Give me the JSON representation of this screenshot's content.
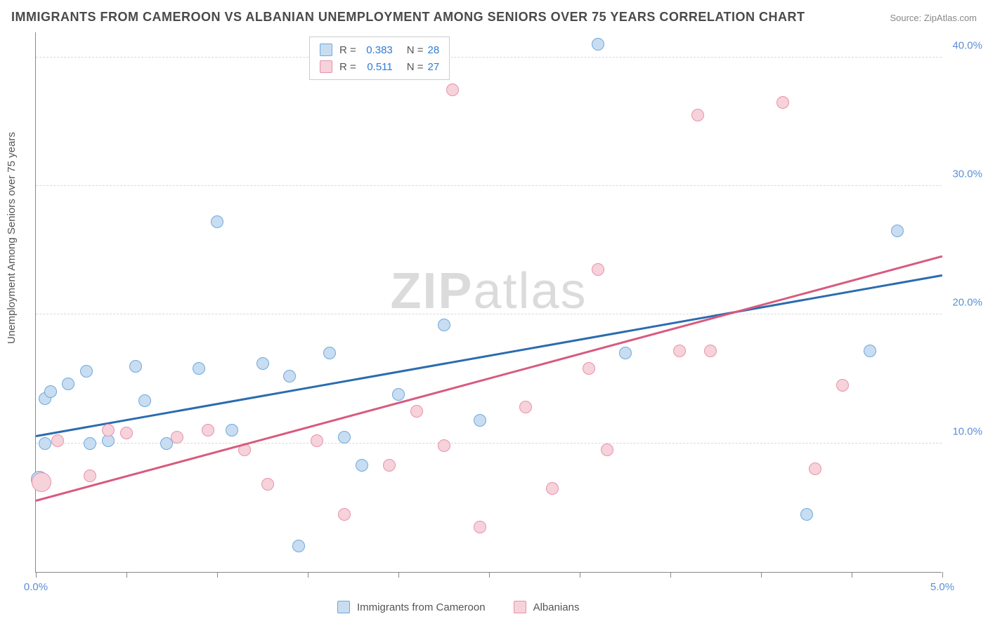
{
  "title": "IMMIGRANTS FROM CAMEROON VS ALBANIAN UNEMPLOYMENT AMONG SENIORS OVER 75 YEARS CORRELATION CHART",
  "source": "Source: ZipAtlas.com",
  "ylabel": "Unemployment Among Seniors over 75 years",
  "watermark_a": "ZIP",
  "watermark_b": "atlas",
  "chart": {
    "type": "scatter",
    "xlim": [
      0.0,
      5.0
    ],
    "ylim": [
      0.0,
      42.0
    ],
    "xticks": [
      0.0,
      0.5,
      1.0,
      1.5,
      2.0,
      2.5,
      3.0,
      3.5,
      4.0,
      4.5,
      5.0
    ],
    "xtick_labels": {
      "0": "0.0%",
      "10": "5.0%"
    },
    "ygrid": [
      10.0,
      20.0,
      30.0,
      40.0
    ],
    "ytick_labels": [
      "10.0%",
      "20.0%",
      "30.0%",
      "40.0%"
    ],
    "background_color": "#ffffff",
    "grid_color": "#d8d8d8",
    "axis_color": "#888888",
    "tick_label_color": "#5a8fd6",
    "title_fontsize": 18,
    "label_fontsize": 15,
    "tick_fontsize": 15,
    "point_radius": 9,
    "point_stroke_width": 1.5,
    "trend_line_width": 2.5
  },
  "series": [
    {
      "name": "Immigrants from Cameroon",
      "fill": "#c8ddf1",
      "stroke": "#6fa8dc",
      "line_color": "#2b6cb0",
      "R": "0.383",
      "N": "28",
      "trend": {
        "x1": 0.0,
        "y1": 10.5,
        "x2": 5.0,
        "y2": 23.0
      },
      "points": [
        {
          "x": 0.05,
          "y": 13.5,
          "r": 9
        },
        {
          "x": 0.08,
          "y": 14.0,
          "r": 9
        },
        {
          "x": 0.02,
          "y": 7.2,
          "r": 12
        },
        {
          "x": 0.05,
          "y": 10.0,
          "r": 9
        },
        {
          "x": 0.18,
          "y": 14.6,
          "r": 9
        },
        {
          "x": 0.28,
          "y": 15.6,
          "r": 9
        },
        {
          "x": 0.3,
          "y": 10.0,
          "r": 9
        },
        {
          "x": 0.4,
          "y": 10.2,
          "r": 9
        },
        {
          "x": 0.55,
          "y": 16.0,
          "r": 9
        },
        {
          "x": 0.6,
          "y": 13.3,
          "r": 9
        },
        {
          "x": 0.72,
          "y": 10.0,
          "r": 9
        },
        {
          "x": 0.9,
          "y": 15.8,
          "r": 9
        },
        {
          "x": 1.0,
          "y": 27.2,
          "r": 9
        },
        {
          "x": 1.08,
          "y": 11.0,
          "r": 9
        },
        {
          "x": 1.25,
          "y": 16.2,
          "r": 9
        },
        {
          "x": 1.4,
          "y": 15.2,
          "r": 9
        },
        {
          "x": 1.45,
          "y": 2.0,
          "r": 9
        },
        {
          "x": 1.62,
          "y": 17.0,
          "r": 9
        },
        {
          "x": 1.7,
          "y": 10.5,
          "r": 9
        },
        {
          "x": 1.8,
          "y": 8.3,
          "r": 9
        },
        {
          "x": 2.0,
          "y": 13.8,
          "r": 9
        },
        {
          "x": 2.25,
          "y": 19.2,
          "r": 9
        },
        {
          "x": 2.45,
          "y": 11.8,
          "r": 9
        },
        {
          "x": 3.1,
          "y": 41.0,
          "r": 9
        },
        {
          "x": 3.25,
          "y": 17.0,
          "r": 9
        },
        {
          "x": 4.25,
          "y": 4.5,
          "r": 9
        },
        {
          "x": 4.6,
          "y": 17.2,
          "r": 9
        },
        {
          "x": 4.75,
          "y": 26.5,
          "r": 9
        }
      ]
    },
    {
      "name": "Albanians",
      "fill": "#f6d2db",
      "stroke": "#e892ab",
      "line_color": "#d85a7f",
      "R": "0.511",
      "N": "27",
      "trend": {
        "x1": 0.0,
        "y1": 5.5,
        "x2": 5.0,
        "y2": 24.5
      },
      "points": [
        {
          "x": 0.03,
          "y": 7.0,
          "r": 14
        },
        {
          "x": 0.12,
          "y": 10.2,
          "r": 9
        },
        {
          "x": 0.3,
          "y": 7.5,
          "r": 9
        },
        {
          "x": 0.4,
          "y": 11.0,
          "r": 9
        },
        {
          "x": 0.5,
          "y": 10.8,
          "r": 9
        },
        {
          "x": 0.78,
          "y": 10.5,
          "r": 9
        },
        {
          "x": 0.95,
          "y": 11.0,
          "r": 9
        },
        {
          "x": 1.15,
          "y": 9.5,
          "r": 9
        },
        {
          "x": 1.28,
          "y": 6.8,
          "r": 9
        },
        {
          "x": 1.55,
          "y": 10.2,
          "r": 9
        },
        {
          "x": 1.7,
          "y": 4.5,
          "r": 9
        },
        {
          "x": 1.95,
          "y": 8.3,
          "r": 9
        },
        {
          "x": 2.1,
          "y": 12.5,
          "r": 9
        },
        {
          "x": 2.25,
          "y": 9.8,
          "r": 9
        },
        {
          "x": 2.3,
          "y": 37.5,
          "r": 9
        },
        {
          "x": 2.45,
          "y": 3.5,
          "r": 9
        },
        {
          "x": 2.7,
          "y": 12.8,
          "r": 9
        },
        {
          "x": 2.85,
          "y": 6.5,
          "r": 9
        },
        {
          "x": 3.05,
          "y": 15.8,
          "r": 9
        },
        {
          "x": 3.1,
          "y": 23.5,
          "r": 9
        },
        {
          "x": 3.15,
          "y": 9.5,
          "r": 9
        },
        {
          "x": 3.55,
          "y": 17.2,
          "r": 9
        },
        {
          "x": 3.65,
          "y": 35.5,
          "r": 9
        },
        {
          "x": 3.72,
          "y": 17.2,
          "r": 9
        },
        {
          "x": 4.12,
          "y": 36.5,
          "r": 9
        },
        {
          "x": 4.3,
          "y": 8.0,
          "r": 9
        },
        {
          "x": 4.45,
          "y": 14.5,
          "r": 9
        }
      ]
    }
  ],
  "legend_top": "legend-top",
  "legend_bottom": "legend-bottom"
}
